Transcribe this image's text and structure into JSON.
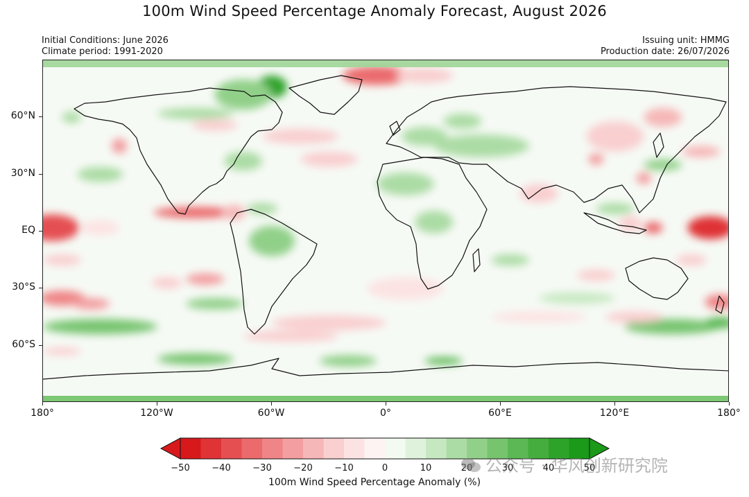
{
  "header": {
    "title": "100m Wind Speed Percentage Anomaly Forecast, August 2026",
    "initial_conditions": "Initial Conditions: June 2026",
    "climate_period": "Climate period: 1991-2020",
    "issuing_unit": "Issuing unit: HMMG",
    "production_date": "Production date: 26/07/2026"
  },
  "axes": {
    "y_ticks": [
      {
        "label": "60°N",
        "lat": 60
      },
      {
        "label": "30°N",
        "lat": 30
      },
      {
        "label": "EQ",
        "lat": 0
      },
      {
        "label": "30°S",
        "lat": -30
      },
      {
        "label": "60°S",
        "lat": -60
      }
    ],
    "x_ticks": [
      {
        "label": "180°",
        "lon": -180
      },
      {
        "label": "120°W",
        "lon": -120
      },
      {
        "label": "60°W",
        "lon": -60
      },
      {
        "label": "0°",
        "lon": 0
      },
      {
        "label": "60°E",
        "lon": 60
      },
      {
        "label": "120°E",
        "lon": 120
      },
      {
        "label": "180°",
        "lon": 180
      }
    ],
    "lat_range": [
      -90,
      90
    ],
    "lon_range": [
      -180,
      180
    ]
  },
  "colorbar": {
    "label": "100m Wind Speed Percentage Anomaly (%)",
    "min": -50,
    "max": 50,
    "step": 5,
    "tick_labels": [
      "−50",
      "−40",
      "−30",
      "−20",
      "−10",
      "0",
      "10",
      "20",
      "30",
      "40",
      "50"
    ],
    "tick_values": [
      -50,
      -40,
      -30,
      -20,
      -10,
      0,
      10,
      20,
      30,
      40,
      50
    ],
    "colors": [
      "#d7191c",
      "#df3336",
      "#e54f52",
      "#eb6b6d",
      "#ef8587",
      "#f39ea0",
      "#f6b7b8",
      "#f9cfd0",
      "#fce3e3",
      "#fdf3f3",
      "#f2faf1",
      "#dff2dc",
      "#c6e8c1",
      "#acdca5",
      "#91d089",
      "#77c46f",
      "#5cb855",
      "#44ad3e",
      "#2ea32a",
      "#1a9a18"
    ],
    "extend": "both"
  },
  "anomaly_blobs": [
    {
      "lon": -175,
      "lat": 2,
      "rlon": 14,
      "rlat": 7,
      "value": -40
    },
    {
      "lon": -150,
      "lat": 2,
      "rlon": 10,
      "rlat": 4,
      "value": -10
    },
    {
      "lon": -100,
      "lat": 10,
      "rlon": 22,
      "rlat": 3,
      "value": -35
    },
    {
      "lon": -80,
      "lat": 10,
      "rlon": 6,
      "rlat": 4,
      "value": -20
    },
    {
      "lon": 170,
      "lat": 2,
      "rlon": 12,
      "rlat": 6,
      "value": -45
    },
    {
      "lon": 140,
      "lat": 2,
      "rlon": 5,
      "rlat": 3,
      "value": -35
    },
    {
      "lon": 128,
      "lat": 4,
      "rlon": 6,
      "rlat": 4,
      "value": -15
    },
    {
      "lon": -5,
      "lat": 82,
      "rlon": 18,
      "rlat": 5,
      "value": -35
    },
    {
      "lon": 20,
      "lat": 82,
      "rlon": 15,
      "rlat": 4,
      "value": -15
    },
    {
      "lon": -60,
      "lat": 76,
      "rlon": 8,
      "rlat": 6,
      "value": 40
    },
    {
      "lon": -75,
      "lat": 72,
      "rlon": 15,
      "rlat": 8,
      "value": 20
    },
    {
      "lon": -140,
      "lat": 45,
      "rlon": 4,
      "rlat": 4,
      "value": -25
    },
    {
      "lon": -90,
      "lat": 56,
      "rlon": 12,
      "rlat": 3,
      "value": -15
    },
    {
      "lon": -100,
      "lat": 62,
      "rlon": 20,
      "rlat": 3,
      "value": 15
    },
    {
      "lon": -45,
      "lat": 50,
      "rlon": 20,
      "rlat": 4,
      "value": -15
    },
    {
      "lon": -30,
      "lat": 38,
      "rlon": 15,
      "rlat": 4,
      "value": -12
    },
    {
      "lon": -170,
      "lat": -35,
      "rlon": 12,
      "rlat": 4,
      "value": -30
    },
    {
      "lon": -155,
      "lat": -38,
      "rlon": 10,
      "rlat": 3,
      "value": -25
    },
    {
      "lon": -95,
      "lat": -25,
      "rlon": 10,
      "rlat": 3,
      "value": -25
    },
    {
      "lon": -115,
      "lat": -27,
      "rlon": 8,
      "rlat": 3,
      "value": -15
    },
    {
      "lon": -90,
      "lat": -38,
      "rlon": 15,
      "rlat": 3,
      "value": 20
    },
    {
      "lon": -150,
      "lat": -50,
      "rlon": 30,
      "rlat": 4,
      "value": 25
    },
    {
      "lon": -170,
      "lat": -63,
      "rlon": 10,
      "rlat": 2,
      "value": -15
    },
    {
      "lon": -30,
      "lat": -48,
      "rlon": 30,
      "rlat": 4,
      "value": -15
    },
    {
      "lon": -50,
      "lat": -55,
      "rlon": 25,
      "rlat": 3,
      "value": -12
    },
    {
      "lon": -100,
      "lat": -67,
      "rlon": 20,
      "rlat": 3,
      "value": 25
    },
    {
      "lon": -20,
      "lat": -68,
      "rlon": 15,
      "rlat": 3,
      "value": 20
    },
    {
      "lon": 30,
      "lat": -68,
      "rlon": 10,
      "rlat": 2,
      "value": 30
    },
    {
      "lon": 150,
      "lat": -50,
      "rlon": 25,
      "rlat": 4,
      "value": 25
    },
    {
      "lon": 175,
      "lat": -48,
      "rlon": 8,
      "rlat": 3,
      "value": 30
    },
    {
      "lon": 175,
      "lat": -37,
      "rlon": 8,
      "rlat": 4,
      "value": -30
    },
    {
      "lon": 130,
      "lat": -45,
      "rlon": 15,
      "rlat": 3,
      "value": -15
    },
    {
      "lon": 110,
      "lat": -23,
      "rlon": 10,
      "rlat": 3,
      "value": -12
    },
    {
      "lon": 100,
      "lat": -35,
      "rlon": 20,
      "rlat": 3,
      "value": 12
    },
    {
      "lon": 80,
      "lat": -45,
      "rlon": 25,
      "rlat": 3,
      "value": -10
    },
    {
      "lon": 10,
      "lat": -30,
      "rlon": 20,
      "rlat": 6,
      "value": -10
    },
    {
      "lon": 120,
      "lat": 50,
      "rlon": 15,
      "rlat": 8,
      "value": -12
    },
    {
      "lon": 110,
      "lat": 38,
      "rlon": 4,
      "rlat": 3,
      "value": -25
    },
    {
      "lon": 135,
      "lat": 28,
      "rlon": 4,
      "rlat": 3,
      "value": -25
    },
    {
      "lon": 165,
      "lat": 42,
      "rlon": 10,
      "rlat": 3,
      "value": -20
    },
    {
      "lon": 145,
      "lat": 60,
      "rlon": 10,
      "rlat": 5,
      "value": -20
    },
    {
      "lon": 145,
      "lat": 35,
      "rlon": 10,
      "rlat": 3,
      "value": 20
    },
    {
      "lon": 120,
      "lat": 12,
      "rlon": 10,
      "rlat": 3,
      "value": 15
    },
    {
      "lon": 80,
      "lat": 20,
      "rlon": 10,
      "rlat": 5,
      "value": -15
    },
    {
      "lon": 50,
      "lat": 45,
      "rlon": 25,
      "rlat": 6,
      "value": 15
    },
    {
      "lon": 20,
      "lat": 50,
      "rlon": 12,
      "rlat": 5,
      "value": 15
    },
    {
      "lon": 40,
      "lat": 58,
      "rlon": 10,
      "rlat": 4,
      "value": 15
    },
    {
      "lon": 10,
      "lat": 25,
      "rlon": 15,
      "rlat": 6,
      "value": 15
    },
    {
      "lon": 25,
      "lat": 5,
      "rlon": 10,
      "rlat": 6,
      "value": 15
    },
    {
      "lon": -60,
      "lat": -5,
      "rlon": 12,
      "rlat": 8,
      "value": 20
    },
    {
      "lon": -65,
      "lat": 12,
      "rlon": 8,
      "rlat": 3,
      "value": 15
    },
    {
      "lon": -75,
      "lat": 37,
      "rlon": 10,
      "rlat": 5,
      "value": 15
    },
    {
      "lon": -150,
      "lat": 30,
      "rlon": 12,
      "rlat": 4,
      "value": 15
    },
    {
      "lon": 65,
      "lat": -15,
      "rlon": 10,
      "rlat": 3,
      "value": 15
    },
    {
      "lon": -165,
      "lat": 60,
      "rlon": 5,
      "rlat": 3,
      "value": 15
    },
    {
      "lon": -170,
      "lat": -15,
      "rlon": 10,
      "rlat": 3,
      "value": -12
    },
    {
      "lon": 160,
      "lat": -15,
      "rlon": 8,
      "rlat": 3,
      "value": -12
    }
  ],
  "watermark": "公众号 · 华风创新研究院"
}
